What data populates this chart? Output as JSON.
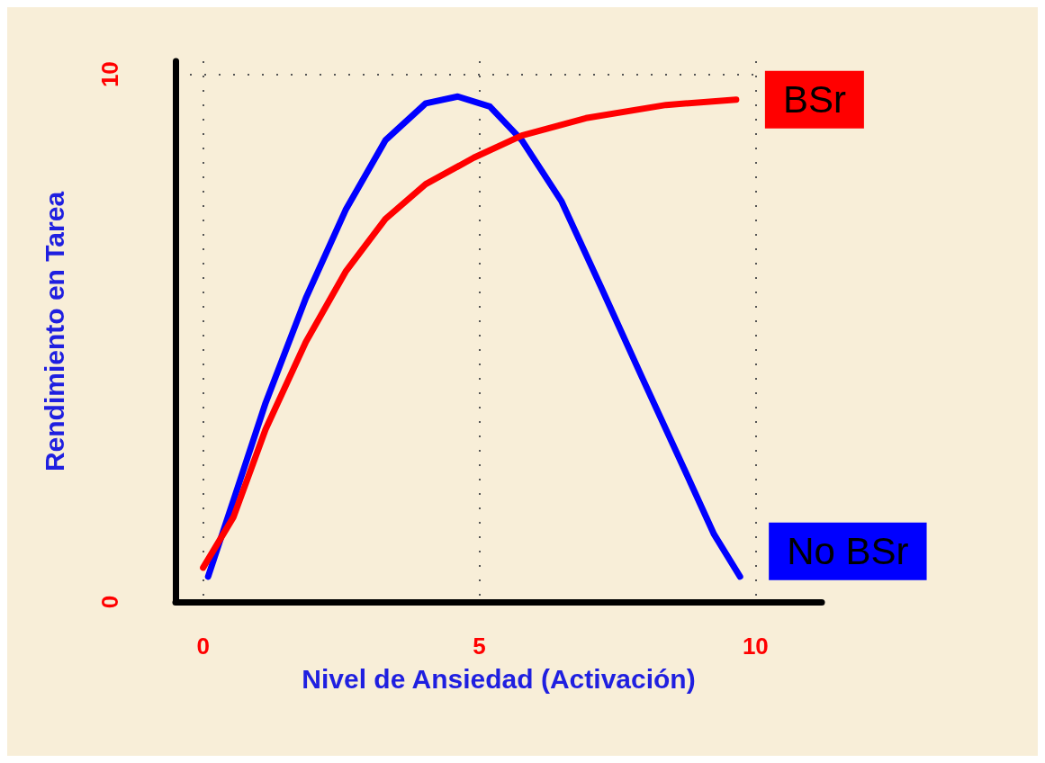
{
  "chart_data": {
    "type": "line",
    "xlabel": "Nivel de Ansiedad (Activación)",
    "ylabel": "Rendimiento en Tarea",
    "xlim": [
      -0.5,
      11.2
    ],
    "xticks": [
      0,
      5,
      10
    ],
    "ylim": [
      0,
      10.25
    ],
    "yticks": [
      0,
      10
    ],
    "grid": true,
    "legend": false,
    "marker": "none",
    "line_style": "solid",
    "series": [
      {
        "name": "No BSr",
        "color": "#0000ff",
        "x": [
          0.09,
          0.55,
          1.13,
          1.86,
          2.58,
          3.3,
          4.03,
          4.61,
          5.19,
          5.77,
          6.49,
          7.22,
          7.94,
          8.67,
          9.25,
          9.72
        ],
        "values": [
          0.48,
          1.93,
          3.77,
          5.76,
          7.43,
          8.75,
          9.45,
          9.58,
          9.39,
          8.75,
          7.59,
          5.93,
          4.27,
          2.61,
          1.28,
          0.48
        ]
      },
      {
        "name": "BSr",
        "color": "#ff0000",
        "x": [
          0,
          0.55,
          1.13,
          1.86,
          2.58,
          3.3,
          4.03,
          4.9,
          5.77,
          6.93,
          8.38,
          9.65
        ],
        "values": [
          0.65,
          1.61,
          3.27,
          4.93,
          6.26,
          7.26,
          7.92,
          8.42,
          8.84,
          9.17,
          9.42,
          9.52
        ]
      }
    ]
  }
}
